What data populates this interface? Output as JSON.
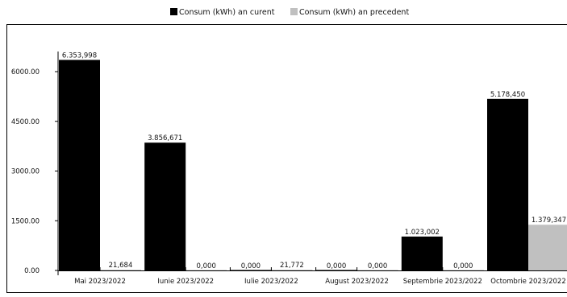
{
  "chart_data": {
    "type": "bar",
    "title": "",
    "xlabel": "",
    "ylabel": "",
    "ylim": [
      0,
      7500
    ],
    "y_ticks": [
      "0.00",
      "1500.00",
      "3000.00",
      "4500.00",
      "6000.00"
    ],
    "y_tick_values": [
      0,
      1500,
      3000,
      4500,
      6000
    ],
    "grid": false,
    "legend_position": "top",
    "categories": [
      "Mai 2023/2022",
      "Iunie 2023/2022",
      "Iulie 2023/2022",
      "August 2023/2022",
      "Septembrie 2023/2022",
      "Octombrie 2023/2022"
    ],
    "series": [
      {
        "name": "Consum (kWh) an curent",
        "color": "#000000",
        "values": [
          6353.998,
          3856.671,
          0,
          0,
          1023.002,
          5178.45
        ],
        "labels": [
          "6.353,998",
          "3.856,671",
          "0,000",
          "0,000",
          "1.023,002",
          "5.178,450"
        ]
      },
      {
        "name": "Consum (kWh) an precedent",
        "color": "#c0c0c0",
        "values": [
          21.684,
          0,
          21.772,
          0,
          0,
          1379.347
        ],
        "labels": [
          "21,684",
          "0,000",
          "21,772",
          "0,000",
          "0,000",
          "1.379,347"
        ]
      }
    ]
  }
}
